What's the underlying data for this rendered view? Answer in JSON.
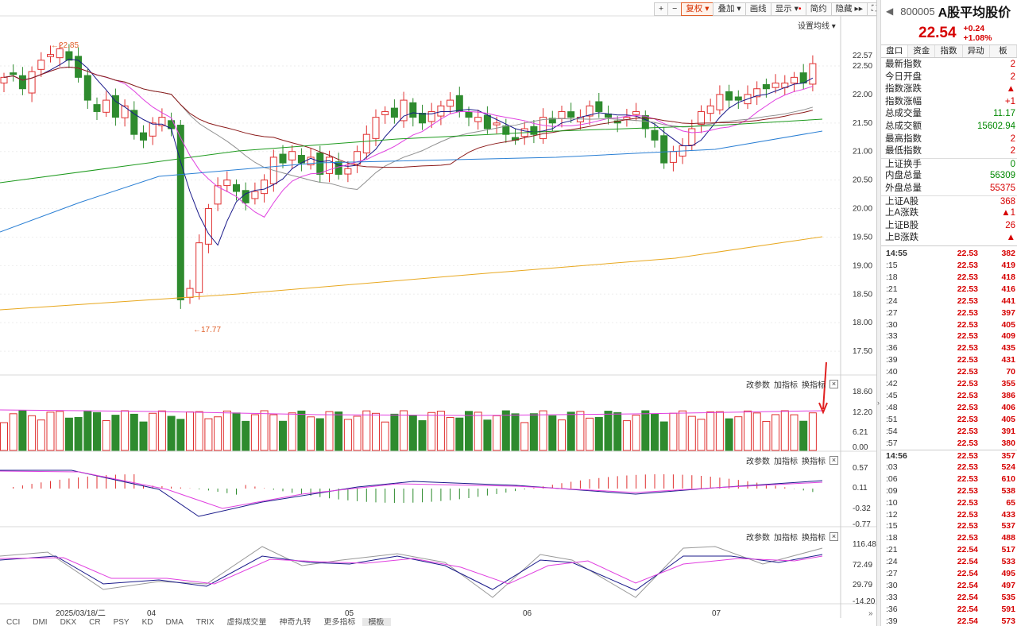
{
  "toolbar": {
    "buttons": [
      "复权",
      "叠加",
      "画线",
      "显示",
      "简约",
      "隐藏"
    ],
    "plus": "+",
    "minus": "−"
  },
  "main": {
    "ma_setting": "设置均线",
    "high_label": "←22.85",
    "low_label": "←17.77",
    "y_ticks": [
      "22.57",
      "22.50",
      "22.00",
      "21.50",
      "21.00",
      "20.50",
      "20.00",
      "19.50",
      "19.00",
      "18.50",
      "18.00",
      "17.50"
    ],
    "sub_tools": {
      "params": "改参数",
      "add": "加指标",
      "swap": "换指标"
    },
    "vol_ticks": [
      "18.60",
      "12.20",
      "6.21",
      "0.00"
    ],
    "macd_ticks": [
      "0.57",
      "0.11",
      "-0.32",
      "-0.77"
    ],
    "kdj_ticks": [
      "116.48",
      "72.49",
      "29.79",
      "-14.20"
    ],
    "x_labels": [
      "2025/03/18/二",
      "04",
      "05",
      "06",
      "07"
    ]
  },
  "bottom_tabs": [
    "CCI",
    "DMI",
    "DKX",
    "CR",
    "PSY",
    "KD",
    "DMA",
    "TRIX",
    "虚拟成交量",
    "神奇九转",
    "更多指标",
    "模板"
  ],
  "colors": {
    "up": "#e03030",
    "down": "#2e8b2e",
    "ma5": "#1a1a8a",
    "ma10": "#e040e0",
    "ma20": "#909090",
    "ma30": "#8b1a1a",
    "ma60": "#1e9a1e",
    "ma120": "#2a7fd4",
    "ma250": "#e8a820"
  },
  "chart_data": {
    "type": "candlestick",
    "first_date": "2025/03/18",
    "last_close": 22.54,
    "ylim": [
      17.5,
      22.57
    ]
  },
  "panel": {
    "code": "800005",
    "name": "A股平均股价",
    "price": "22.54",
    "change": "+0.24",
    "pct": "+1.08%",
    "tabs": [
      "盘口",
      "资金",
      "指数",
      "异动",
      "板"
    ],
    "quotes": [
      [
        "最新指数",
        "2",
        "red"
      ],
      [
        "今日开盘",
        "2",
        "red"
      ],
      [
        "指数涨跌",
        "▲",
        "red"
      ],
      [
        "指数涨幅",
        "+1",
        "red"
      ],
      [
        "总成交量",
        "11.17",
        "grn"
      ],
      [
        "总成交额",
        "15602.94",
        "grn"
      ],
      [
        "最高指数",
        "2",
        "red"
      ],
      [
        "最低指数",
        "2",
        "red"
      ],
      [
        "上证换手",
        "0",
        "grn"
      ],
      [
        "内盘总量",
        "56309",
        "grn"
      ],
      [
        "外盘总量",
        "55375",
        "red"
      ],
      [
        "上证A股",
        "368",
        "red"
      ],
      [
        "上A涨跌",
        "▲1",
        "red"
      ],
      [
        "上证B股",
        "26",
        "red"
      ],
      [
        "上B涨跌",
        "▲",
        "red"
      ]
    ],
    "ticks": [
      [
        "14:55",
        "22.53",
        "382",
        "red"
      ],
      [
        ":15",
        "22.53",
        "419",
        "red"
      ],
      [
        ":18",
        "22.53",
        "418",
        "red"
      ],
      [
        ":21",
        "22.53",
        "416",
        "red"
      ],
      [
        ":24",
        "22.53",
        "441",
        "red"
      ],
      [
        ":27",
        "22.53",
        "397",
        "red"
      ],
      [
        ":30",
        "22.53",
        "405",
        "red"
      ],
      [
        ":33",
        "22.53",
        "409",
        "red"
      ],
      [
        ":36",
        "22.53",
        "435",
        "red"
      ],
      [
        ":39",
        "22.53",
        "431",
        "red"
      ],
      [
        ":40",
        "22.53",
        "70",
        "red"
      ],
      [
        ":42",
        "22.53",
        "355",
        "red"
      ],
      [
        ":45",
        "22.53",
        "386",
        "red"
      ],
      [
        ":48",
        "22.53",
        "406",
        "red"
      ],
      [
        ":51",
        "22.53",
        "405",
        "red"
      ],
      [
        ":54",
        "22.53",
        "391",
        "red"
      ],
      [
        ":57",
        "22.53",
        "380",
        "red"
      ],
      [
        "14:56",
        "22.53",
        "357",
        "red"
      ],
      [
        ":03",
        "22.53",
        "524",
        "red"
      ],
      [
        ":06",
        "22.53",
        "610",
        "red"
      ],
      [
        ":09",
        "22.53",
        "538",
        "red"
      ],
      [
        ":10",
        "22.53",
        "65",
        "red"
      ],
      [
        ":12",
        "22.53",
        "433",
        "red"
      ],
      [
        ":15",
        "22.53",
        "537",
        "red"
      ],
      [
        ":18",
        "22.53",
        "488",
        "red"
      ],
      [
        ":21",
        "22.54",
        "517",
        "red"
      ],
      [
        ":24",
        "22.54",
        "533",
        "red"
      ],
      [
        ":27",
        "22.54",
        "495",
        "red"
      ],
      [
        ":30",
        "22.54",
        "497",
        "red"
      ],
      [
        ":33",
        "22.54",
        "535",
        "red"
      ],
      [
        ":36",
        "22.54",
        "591",
        "red"
      ],
      [
        ":39",
        "22.54",
        "573",
        "red"
      ]
    ]
  }
}
